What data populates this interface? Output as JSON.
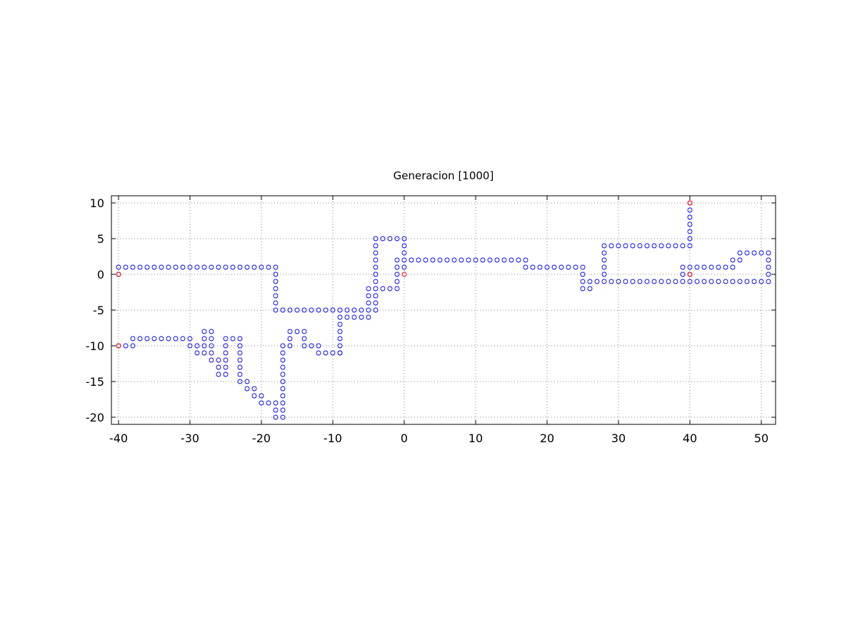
{
  "chart_data": {
    "type": "scatter",
    "title": "Generacion [1000]",
    "xlabel": "",
    "ylabel": "",
    "xlim": [
      -41,
      52
    ],
    "ylim": [
      -21,
      11
    ],
    "xticks": [
      -40,
      -30,
      -20,
      -10,
      0,
      10,
      20,
      30,
      40,
      50
    ],
    "yticks": [
      10,
      5,
      0,
      -5,
      -10,
      -15,
      -20
    ],
    "grid": true,
    "legend": "none",
    "series": [
      {
        "marker": "circle",
        "color": "#0000ff",
        "points": [
          [
            -40,
            1
          ],
          [
            -39,
            1
          ],
          [
            -38,
            1
          ],
          [
            -37,
            1
          ],
          [
            -36,
            1
          ],
          [
            -35,
            1
          ],
          [
            -34,
            1
          ],
          [
            -33,
            1
          ],
          [
            -32,
            1
          ],
          [
            -31,
            1
          ],
          [
            -30,
            1
          ],
          [
            -29,
            1
          ],
          [
            -28,
            1
          ],
          [
            -27,
            1
          ],
          [
            -26,
            1
          ],
          [
            -25,
            1
          ],
          [
            -24,
            1
          ],
          [
            -23,
            1
          ],
          [
            -22,
            1
          ],
          [
            -21,
            1
          ],
          [
            -20,
            1
          ],
          [
            -19,
            1
          ],
          [
            -18,
            1
          ],
          [
            -40,
            0
          ],
          [
            -18,
            0
          ],
          [
            -18,
            -1
          ],
          [
            -18,
            -2
          ],
          [
            -18,
            -3
          ],
          [
            -18,
            -4
          ],
          [
            -18,
            -5
          ],
          [
            -17,
            -5
          ],
          [
            -16,
            -5
          ],
          [
            -15,
            -5
          ],
          [
            -14,
            -5
          ],
          [
            -13,
            -5
          ],
          [
            -12,
            -5
          ],
          [
            -11,
            -5
          ],
          [
            -10,
            -5
          ],
          [
            -9,
            -5
          ],
          [
            -8,
            -5
          ],
          [
            -7,
            -5
          ],
          [
            -6,
            -5
          ],
          [
            -5,
            -5
          ],
          [
            -4,
            -5
          ],
          [
            -9,
            -6
          ],
          [
            -8,
            -6
          ],
          [
            -7,
            -6
          ],
          [
            -6,
            -6
          ],
          [
            -5,
            -6
          ],
          [
            -9,
            -7
          ],
          [
            -9,
            -8
          ],
          [
            -9,
            -9
          ],
          [
            -9,
            -10
          ],
          [
            -9,
            -11
          ],
          [
            -5,
            -4
          ],
          [
            -5,
            -3
          ],
          [
            -5,
            -2
          ],
          [
            -4,
            -4
          ],
          [
            -4,
            -3
          ],
          [
            -4,
            -2
          ],
          [
            -4,
            -1
          ],
          [
            -4,
            0
          ],
          [
            -4,
            1
          ],
          [
            -4,
            2
          ],
          [
            -4,
            3
          ],
          [
            -4,
            4
          ],
          [
            -4,
            5
          ],
          [
            -3,
            5
          ],
          [
            -2,
            5
          ],
          [
            -1,
            5
          ],
          [
            0,
            5
          ],
          [
            0,
            4
          ],
          [
            0,
            3
          ],
          [
            0,
            2
          ],
          [
            0,
            1
          ],
          [
            -3,
            -2
          ],
          [
            -2,
            -2
          ],
          [
            -1,
            -2
          ],
          [
            -1,
            -1
          ],
          [
            -1,
            0
          ],
          [
            -1,
            1
          ],
          [
            -1,
            2
          ],
          [
            1,
            2
          ],
          [
            2,
            2
          ],
          [
            3,
            2
          ],
          [
            4,
            2
          ],
          [
            5,
            2
          ],
          [
            6,
            2
          ],
          [
            7,
            2
          ],
          [
            8,
            2
          ],
          [
            9,
            2
          ],
          [
            10,
            2
          ],
          [
            11,
            2
          ],
          [
            12,
            2
          ],
          [
            13,
            2
          ],
          [
            14,
            2
          ],
          [
            15,
            2
          ],
          [
            16,
            2
          ],
          [
            17,
            2
          ],
          [
            17,
            1
          ],
          [
            18,
            1
          ],
          [
            19,
            1
          ],
          [
            20,
            1
          ],
          [
            21,
            1
          ],
          [
            22,
            1
          ],
          [
            23,
            1
          ],
          [
            24,
            1
          ],
          [
            25,
            1
          ],
          [
            25,
            0
          ],
          [
            25,
            -1
          ],
          [
            25,
            -2
          ],
          [
            26,
            -2
          ],
          [
            26,
            -1
          ],
          [
            27,
            -1
          ],
          [
            28,
            -1
          ],
          [
            28,
            0
          ],
          [
            28,
            1
          ],
          [
            28,
            2
          ],
          [
            28,
            3
          ],
          [
            28,
            4
          ],
          [
            29,
            4
          ],
          [
            30,
            4
          ],
          [
            31,
            4
          ],
          [
            32,
            4
          ],
          [
            33,
            4
          ],
          [
            34,
            4
          ],
          [
            35,
            4
          ],
          [
            36,
            4
          ],
          [
            37,
            4
          ],
          [
            38,
            4
          ],
          [
            39,
            4
          ],
          [
            40,
            4
          ],
          [
            40,
            5
          ],
          [
            40,
            6
          ],
          [
            40,
            7
          ],
          [
            40,
            8
          ],
          [
            40,
            9
          ],
          [
            40,
            10
          ],
          [
            29,
            -1
          ],
          [
            30,
            -1
          ],
          [
            31,
            -1
          ],
          [
            32,
            -1
          ],
          [
            33,
            -1
          ],
          [
            34,
            -1
          ],
          [
            35,
            -1
          ],
          [
            36,
            -1
          ],
          [
            37,
            -1
          ],
          [
            38,
            -1
          ],
          [
            39,
            -1
          ],
          [
            40,
            -1
          ],
          [
            41,
            -1
          ],
          [
            42,
            -1
          ],
          [
            43,
            -1
          ],
          [
            44,
            -1
          ],
          [
            45,
            -1
          ],
          [
            46,
            -1
          ],
          [
            47,
            -1
          ],
          [
            48,
            -1
          ],
          [
            49,
            -1
          ],
          [
            50,
            -1
          ],
          [
            51,
            -1
          ],
          [
            39,
            0
          ],
          [
            39,
            1
          ],
          [
            40,
            1
          ],
          [
            40,
            0
          ],
          [
            41,
            1
          ],
          [
            42,
            1
          ],
          [
            43,
            1
          ],
          [
            44,
            1
          ],
          [
            45,
            1
          ],
          [
            46,
            1
          ],
          [
            46,
            2
          ],
          [
            47,
            2
          ],
          [
            47,
            3
          ],
          [
            48,
            3
          ],
          [
            49,
            3
          ],
          [
            50,
            3
          ],
          [
            51,
            3
          ],
          [
            51,
            2
          ],
          [
            51,
            1
          ],
          [
            51,
            0
          ],
          [
            -40,
            -10
          ],
          [
            -39,
            -10
          ],
          [
            -38,
            -10
          ],
          [
            -38,
            -9
          ],
          [
            -37,
            -9
          ],
          [
            -36,
            -9
          ],
          [
            -35,
            -9
          ],
          [
            -34,
            -9
          ],
          [
            -33,
            -9
          ],
          [
            -32,
            -9
          ],
          [
            -31,
            -9
          ],
          [
            -30,
            -9
          ],
          [
            -30,
            -10
          ],
          [
            -29,
            -10
          ],
          [
            -29,
            -11
          ],
          [
            -28,
            -11
          ],
          [
            -28,
            -10
          ],
          [
            -28,
            -9
          ],
          [
            -28,
            -8
          ],
          [
            -27,
            -8
          ],
          [
            -27,
            -9
          ],
          [
            -27,
            -10
          ],
          [
            -27,
            -11
          ],
          [
            -27,
            -12
          ],
          [
            -26,
            -12
          ],
          [
            -26,
            -13
          ],
          [
            -26,
            -14
          ],
          [
            -25,
            -14
          ],
          [
            -25,
            -13
          ],
          [
            -25,
            -12
          ],
          [
            -25,
            -11
          ],
          [
            -25,
            -10
          ],
          [
            -25,
            -9
          ],
          [
            -24,
            -9
          ],
          [
            -23,
            -9
          ],
          [
            -23,
            -10
          ],
          [
            -23,
            -11
          ],
          [
            -23,
            -12
          ],
          [
            -23,
            -13
          ],
          [
            -23,
            -14
          ],
          [
            -23,
            -15
          ],
          [
            -22,
            -15
          ],
          [
            -22,
            -16
          ],
          [
            -21,
            -16
          ],
          [
            -21,
            -17
          ],
          [
            -20,
            -17
          ],
          [
            -20,
            -18
          ],
          [
            -19,
            -18
          ],
          [
            -18,
            -18
          ],
          [
            -18,
            -19
          ],
          [
            -18,
            -20
          ],
          [
            -17,
            -20
          ],
          [
            -17,
            -19
          ],
          [
            -17,
            -18
          ],
          [
            -17,
            -17
          ],
          [
            -17,
            -16
          ],
          [
            -17,
            -15
          ],
          [
            -17,
            -14
          ],
          [
            -17,
            -13
          ],
          [
            -17,
            -12
          ],
          [
            -17,
            -11
          ],
          [
            -17,
            -10
          ],
          [
            -16,
            -10
          ],
          [
            -16,
            -9
          ],
          [
            -16,
            -8
          ],
          [
            -15,
            -8
          ],
          [
            -14,
            -8
          ],
          [
            -14,
            -9
          ],
          [
            -14,
            -10
          ],
          [
            -13,
            -10
          ],
          [
            -12,
            -10
          ],
          [
            -12,
            -11
          ],
          [
            -11,
            -11
          ],
          [
            -10,
            -11
          ],
          [
            -9,
            -11
          ]
        ]
      },
      {
        "marker": "circle",
        "color": "#ff0000",
        "points": [
          [
            0,
            0
          ],
          [
            -40,
            0
          ],
          [
            -40,
            -10
          ],
          [
            40,
            10
          ],
          [
            40,
            0
          ]
        ]
      }
    ]
  }
}
